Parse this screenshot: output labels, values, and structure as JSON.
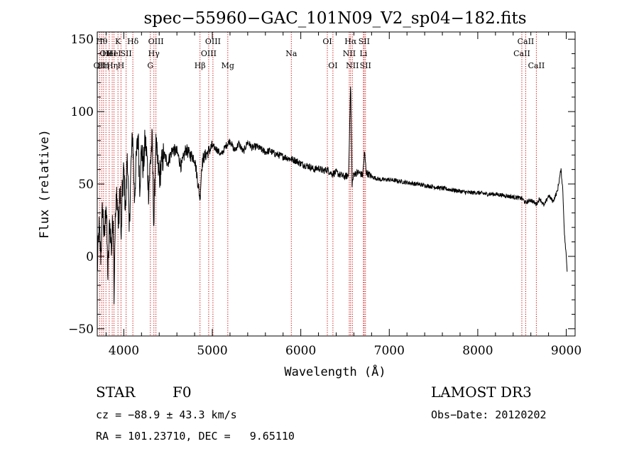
{
  "chart_data": {
    "type": "line",
    "title": "spec−55960−GAC_101N09_V2_sp04−182.fits",
    "xlabel": "Wavelength (Å)",
    "ylabel": "Flux (relative)",
    "xlim": [
      3700,
      9100
    ],
    "ylim": [
      -55,
      155
    ],
    "x_ticks": [
      {
        "value": 4000,
        "label": "4000"
      },
      {
        "value": 5000,
        "label": "5000"
      },
      {
        "value": 6000,
        "label": "6000"
      },
      {
        "value": 7000,
        "label": "7000"
      },
      {
        "value": 8000,
        "label": "8000"
      },
      {
        "value": 9000,
        "label": "9000"
      }
    ],
    "y_ticks": [
      {
        "value": -50,
        "label": "−50"
      },
      {
        "value": 0,
        "label": "0"
      },
      {
        "value": 50,
        "label": "50"
      },
      {
        "value": 100,
        "label": "100"
      },
      {
        "value": 150,
        "label": "150"
      }
    ],
    "x_minor_step": 200,
    "y_minor_step": 10,
    "series": [
      {
        "name": "flux",
        "x": [
          3700,
          3720,
          3740,
          3760,
          3780,
          3800,
          3820,
          3840,
          3860,
          3880,
          3890,
          3900,
          3920,
          3940,
          3960,
          3970,
          3980,
          4000,
          4020,
          4040,
          4060,
          4080,
          4100,
          4120,
          4140,
          4160,
          4180,
          4200,
          4220,
          4240,
          4260,
          4280,
          4300,
          4320,
          4340,
          4360,
          4380,
          4400,
          4450,
          4500,
          4550,
          4600,
          4650,
          4700,
          4750,
          4800,
          4850,
          4861,
          4880,
          4900,
          4950,
          5000,
          5050,
          5100,
          5150,
          5200,
          5250,
          5300,
          5350,
          5400,
          5450,
          5500,
          5550,
          5600,
          5650,
          5700,
          5750,
          5800,
          5850,
          5900,
          5950,
          6000,
          6050,
          6100,
          6150,
          6200,
          6250,
          6300,
          6350,
          6400,
          6450,
          6500,
          6540,
          6563,
          6580,
          6600,
          6650,
          6700,
          6720,
          6740,
          6800,
          6900,
          7000,
          7100,
          7200,
          7300,
          7400,
          7500,
          7600,
          7700,
          7800,
          7900,
          8000,
          8100,
          8200,
          8300,
          8400,
          8500,
          8540,
          8600,
          8662,
          8700,
          8750,
          8800,
          8850,
          8900,
          8940,
          8960,
          8980,
          9000,
          9010
        ],
        "y": [
          -10,
          20,
          0,
          35,
          10,
          40,
          -15,
          25,
          5,
          30,
          -28,
          18,
          45,
          20,
          50,
          5,
          40,
          60,
          30,
          75,
          15,
          60,
          85,
          40,
          65,
          85,
          50,
          75,
          60,
          80,
          70,
          45,
          65,
          80,
          20,
          78,
          65,
          55,
          70,
          65,
          74,
          72,
          62,
          74,
          70,
          68,
          45,
          40,
          62,
          68,
          72,
          76,
          74,
          70,
          76,
          80,
          73,
          78,
          72,
          79,
          75,
          76,
          74,
          72,
          73,
          71,
          70,
          69,
          68,
          67,
          66,
          64,
          63,
          62,
          60,
          61,
          59,
          60,
          57,
          58,
          56,
          55,
          56,
          120,
          50,
          57,
          58,
          56,
          72,
          58,
          55,
          53,
          53,
          52,
          51,
          50,
          49,
          48,
          47,
          46,
          45,
          44,
          44,
          43,
          43,
          42,
          41,
          40,
          37,
          39,
          36,
          40,
          35,
          42,
          38,
          45,
          60,
          47,
          15,
          0,
          -10
        ]
      }
    ],
    "lines": [
      {
        "x": 3727,
        "tier": 2,
        "label": "OII"
      },
      {
        "x": 3750,
        "tier": 0,
        "label": "Hθ"
      },
      {
        "x": 3771,
        "tier": 2,
        "label": "Hη"
      },
      {
        "x": 3798,
        "tier": 1,
        "label": "OII"
      },
      {
        "x": 3835,
        "tier": 1,
        "label": "HeI"
      },
      {
        "x": 3869,
        "tier": 2,
        "label": "Hη"
      },
      {
        "x": 3889,
        "tier": 1,
        "label": "HeI"
      },
      {
        "x": 3934,
        "tier": 0,
        "label": "K"
      },
      {
        "x": 3968,
        "tier": 2,
        "label": "H"
      },
      {
        "x": 4026,
        "tier": 1,
        "label": "SII"
      },
      {
        "x": 4102,
        "tier": 0,
        "label": "Hδ"
      },
      {
        "x": 4300,
        "tier": 2,
        "label": "G"
      },
      {
        "x": 4340,
        "tier": 1,
        "label": "Hγ"
      },
      {
        "x": 4363,
        "tier": 0,
        "label": "OIII"
      },
      {
        "x": 4861,
        "tier": 2,
        "label": "Hβ"
      },
      {
        "x": 4959,
        "tier": 1,
        "label": "OIII"
      },
      {
        "x": 5007,
        "tier": 0,
        "label": "OIII"
      },
      {
        "x": 5175,
        "tier": 2,
        "label": "Mg"
      },
      {
        "x": 5893,
        "tier": 1,
        "label": "Na"
      },
      {
        "x": 6300,
        "tier": 0,
        "label": "OI"
      },
      {
        "x": 6363,
        "tier": 2,
        "label": "OI"
      },
      {
        "x": 6548,
        "tier": 1,
        "label": "NII"
      },
      {
        "x": 6563,
        "tier": 0,
        "label": "Hα"
      },
      {
        "x": 6583,
        "tier": 2,
        "label": "NII"
      },
      {
        "x": 6708,
        "tier": 1,
        "label": "Li"
      },
      {
        "x": 6716,
        "tier": 0,
        "label": "SII"
      },
      {
        "x": 6731,
        "tier": 2,
        "label": "SII"
      },
      {
        "x": 8498,
        "tier": 1,
        "label": "CaII"
      },
      {
        "x": 8542,
        "tier": 0,
        "label": "CaII"
      },
      {
        "x": 8662,
        "tier": 2,
        "label": "CaII"
      }
    ]
  },
  "info": {
    "class_label": "STAR",
    "subclass": "F0",
    "survey": "LAMOST DR3",
    "cz": "cz = −88.9 ± 43.3 km/s",
    "obs_date": "Obs−Date: 20120202",
    "radec": "RA = 101.23710, DEC =   9.65110"
  },
  "colors": {
    "axis": "#000000",
    "spectrum": "#000000",
    "line_markers": "#cc0000",
    "background": "#ffffff"
  }
}
